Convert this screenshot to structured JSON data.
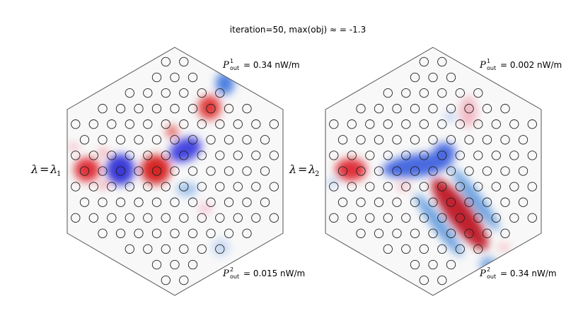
{
  "figure": {
    "title": "iteration=50, max(obj) ≈ = -1.3",
    "colors": {
      "positive": "#b2182b",
      "negative": "#2166ac",
      "rod_stroke": "#222222",
      "hexagon_stroke": "#555555"
    },
    "panels": [
      {
        "lambda": {
          "symbol": "λ",
          "equals": "=",
          "rhs": "λ",
          "sub": "1"
        },
        "p_out_1": {
          "symbol": "P",
          "sup": "1",
          "sub": "out",
          "value": "= 0.34 nW/m"
        },
        "p_out_2": {
          "symbol": "P",
          "sup": "2",
          "sub": "out",
          "value": "= 0.015 nW/m"
        }
      },
      {
        "lambda": {
          "symbol": "λ",
          "equals": "=",
          "rhs": "λ",
          "sub": "2"
        },
        "p_out_1": {
          "symbol": "P",
          "sup": "1",
          "sub": "out",
          "value": "= 0.002 nW/m"
        },
        "p_out_2": {
          "symbol": "P",
          "sup": "2",
          "sub": "out",
          "value": "= 0.34 nW/m"
        }
      }
    ]
  }
}
